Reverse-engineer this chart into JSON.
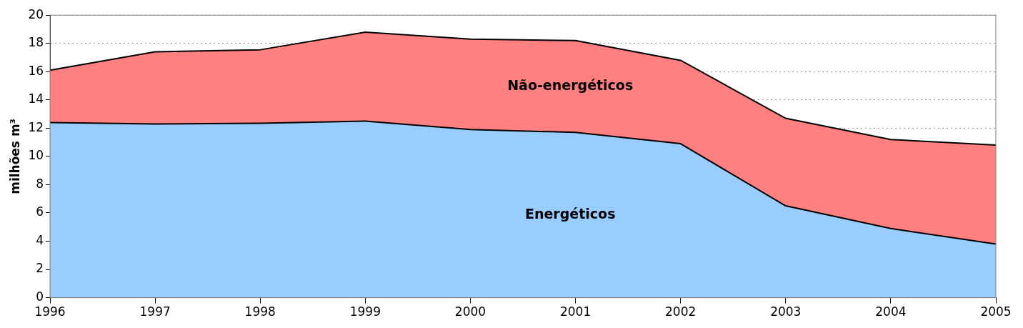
{
  "chart_data": {
    "type": "area",
    "stacked": true,
    "ylabel": "milhões m³",
    "categories": [
      "1996",
      "1997",
      "1998",
      "1999",
      "2000",
      "2001",
      "2002",
      "2003",
      "2004",
      "2005"
    ],
    "series": [
      {
        "name": "Energéticos",
        "color": "#99ccff",
        "values": [
          12.4,
          12.3,
          12.35,
          12.5,
          11.9,
          11.7,
          10.9,
          6.5,
          4.9,
          3.8
        ]
      },
      {
        "name": "Não-energéticos",
        "color": "#ff8080",
        "values": [
          3.7,
          5.1,
          5.2,
          6.3,
          6.4,
          6.5,
          5.9,
          6.2,
          6.3,
          7.0
        ]
      }
    ],
    "ylim": [
      0,
      20
    ],
    "yticks": [
      0,
      2,
      4,
      6,
      8,
      10,
      12,
      14,
      16,
      18,
      20
    ],
    "grid": "y",
    "legend": false
  }
}
